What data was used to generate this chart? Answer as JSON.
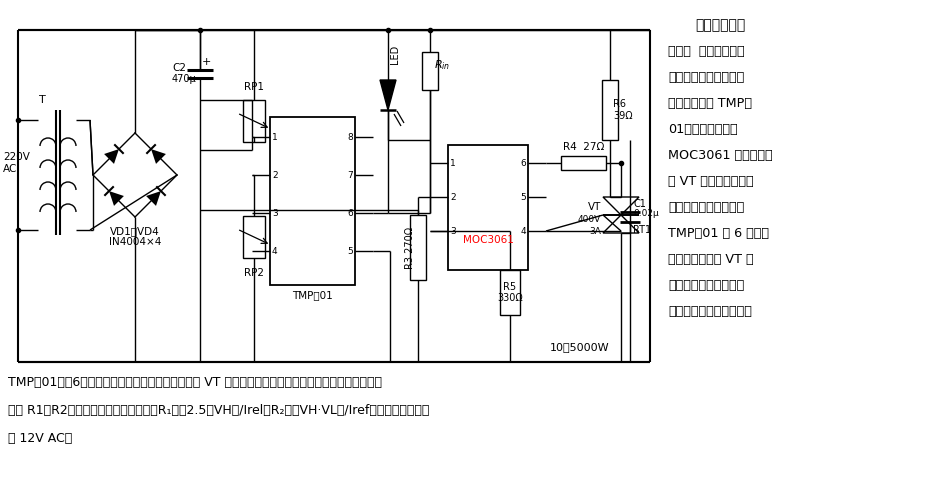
{
  "bg": "#ffffff",
  "right_title": "智能恒温控制",
  "right_desc": [
    "器电路  电路主要由电",
    "子温度传感器与控制器",
    "一体化的芯片 TMP－",
    "01、光电耦合器件",
    "MOC3061 和双向可控",
    "硅 VT 等组成。当环境",
    "温度低于设定温度时，",
    "TMP－01 脚 6 输出高",
    "电平，光耦触发 VT 导",
    "通，加热器加温。当温",
    "度上升到设定温度值时，"
  ],
  "btm1": "TMP－01的脚6输出由高电平变为低电平，则可控硅 VT 截止，加热器停止加热。如此反复，自动控温。",
  "btm2": "图中 R1、R2可用以设置恒温高低温度。R₁＝（2.5－VH）/Irel，R₂＝（VH·VL）/Iref。变压器次级电压",
  "btm3": "为 12V AC。"
}
